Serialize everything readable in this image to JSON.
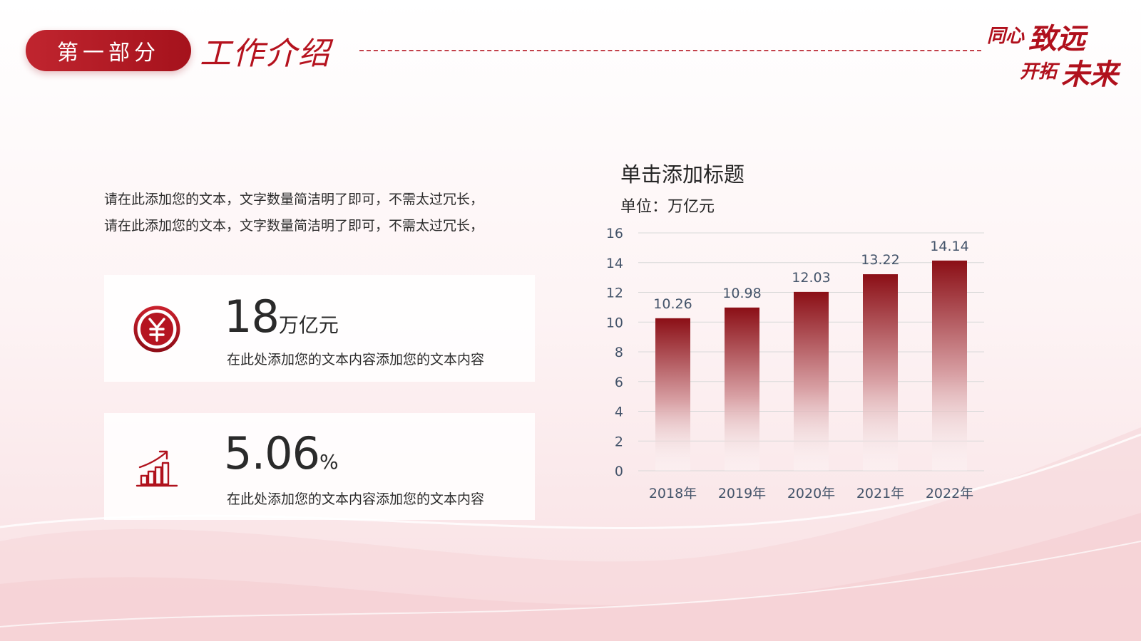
{
  "header": {
    "section_label": "第一部分",
    "section_title": "工作介绍",
    "logo_line1_small": "同心",
    "logo_line1_big": "致远",
    "logo_line2_small": "开拓",
    "logo_line2_big": "未来"
  },
  "intro": {
    "line1": "请在此添加您的文本，文字数量简洁明了即可，不需太过冗长，",
    "line2": "请在此添加您的文本，文字数量简洁明了即可，不需太过冗长，"
  },
  "stats": [
    {
      "icon": "yuan-coin-icon",
      "value": "18",
      "unit": "万亿元",
      "description": "在此处添加您的文本内容添加您的文本内容"
    },
    {
      "icon": "growth-chart-icon",
      "value": "5.06",
      "unit": "%",
      "description": "在此处添加您的文本内容添加您的文本内容"
    }
  ],
  "chart_data": {
    "type": "bar",
    "title": "单击添加标题",
    "unit_label": "单位：万亿元",
    "categories": [
      "2018年",
      "2019年",
      "2020年",
      "2021年",
      "2022年"
    ],
    "values": [
      10.26,
      10.98,
      12.03,
      13.22,
      14.14
    ],
    "value_labels": [
      "10.26",
      "10.98",
      "12.03",
      "13.22",
      "14.14"
    ],
    "ylim": [
      0,
      16
    ],
    "yticks": [
      0,
      2,
      4,
      6,
      8,
      10,
      12,
      14,
      16
    ],
    "grid": true,
    "colors": {
      "bar_top": "#8b0f16",
      "bar_bottom": "#ffffff",
      "axis_text": "#44546a",
      "grid": "#d9d9d9"
    }
  },
  "theme": {
    "accent": "#b5121e"
  }
}
